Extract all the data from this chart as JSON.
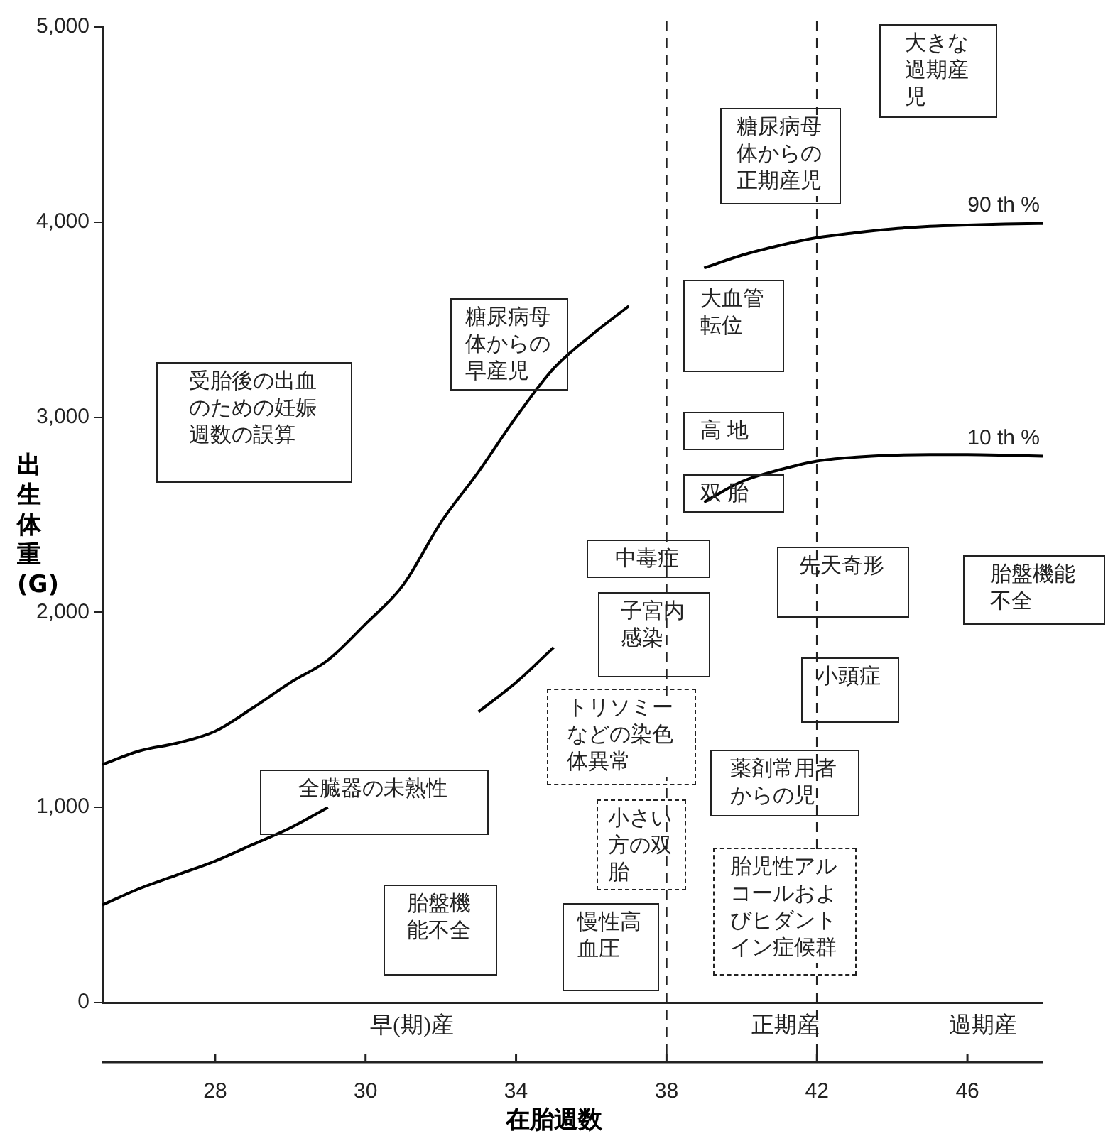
{
  "chart_data": {
    "type": "line",
    "xlabel": "在胎週数",
    "ylabel": "出生体重(G)",
    "categories": [
      null,
      null,
      null,
      "28",
      null,
      null,
      null,
      "30",
      null,
      null,
      null,
      "34",
      null,
      null,
      null,
      "38",
      null,
      null,
      null,
      "42",
      null,
      null,
      null,
      "46",
      null,
      null
    ],
    "series": [
      {
        "name": "90 th %",
        "color": "#000000",
        "values": [
          1220,
          1290,
          1330,
          1390,
          1510,
          1640,
          1755,
          1940,
          2140,
          2460,
          2720,
          3000,
          3250,
          3420,
          3570,
          null,
          3765,
          3830,
          3880,
          3920,
          3945,
          3965,
          3978,
          3985,
          3990,
          3993
        ]
      },
      {
        "name": "10 th %",
        "color": "#000000",
        "values": [
          500,
          585,
          655,
          725,
          810,
          895,
          1000,
          null,
          null,
          null,
          1490,
          1640,
          1820,
          null,
          null,
          null,
          2565,
          2670,
          2730,
          2775,
          2795,
          2805,
          2808,
          2808,
          2805,
          2800
        ]
      }
    ],
    "ylim": [
      0,
      5000
    ],
    "yticks": [
      {
        "value": 0,
        "label": "0"
      },
      {
        "value": 1000,
        "label": "1,000"
      },
      {
        "value": 2000,
        "label": "2,000"
      },
      {
        "value": 3000,
        "label": "3,000"
      },
      {
        "value": 4000,
        "label": "4,000"
      },
      {
        "value": 5000,
        "label": "5,000"
      }
    ],
    "ref_lines": [
      {
        "axis": "x",
        "value": "38",
        "line_style": "dashed"
      },
      {
        "axis": "x",
        "value": "42",
        "line_style": "dashed"
      }
    ],
    "annotations": [
      "早(期)産",
      "正期産",
      "過期産",
      "受胎後の出血のための妊娠週数の誤算",
      "糖尿病母体からの早産児",
      "糖尿病母体からの正期産児",
      "大きな過期産児",
      "大血管転位",
      "高 地",
      "双 胎",
      "中毒症",
      "先天奇形",
      "胎盤機能不全",
      "子宮内感染",
      "小頭症",
      "トリソミーなどの染色体異常",
      "全臓器の未熟性",
      "薬剤常用者からの児",
      "小さい方の双胎",
      "胎児性アルコールおよびヒダントイン症候群",
      "胎盤機能不全",
      "慢性高血圧"
    ],
    "legend": false,
    "marker": "none",
    "line_style": "solid"
  }
}
